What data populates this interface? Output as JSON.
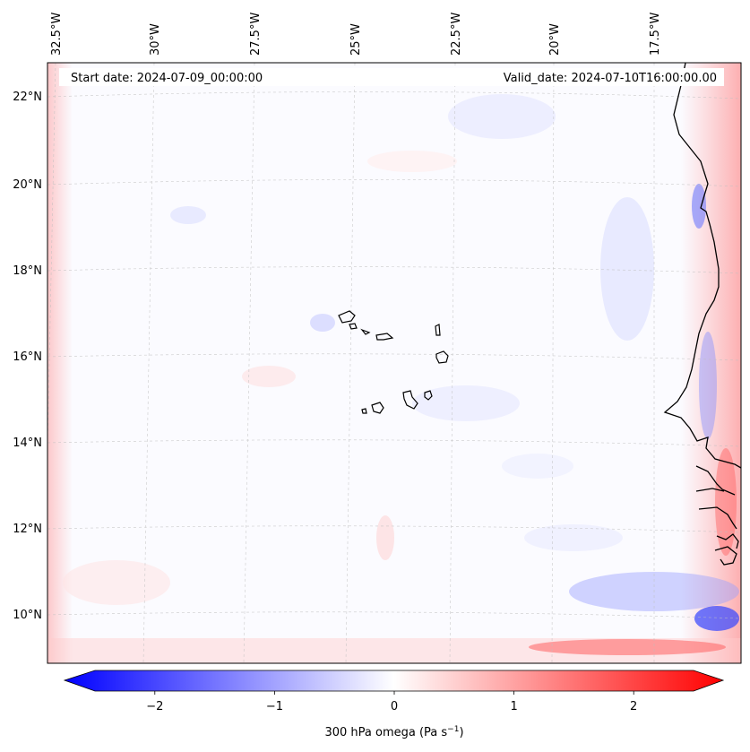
{
  "header": {
    "start_date": "Start date: 2024-07-09_00:00:00",
    "valid_date": "Valid_date: 2024-07-10T16:00:00.00"
  },
  "map": {
    "region": "Cape Verde / West Africa coast",
    "top_lon_labels": [
      "32.5°W",
      "30°W",
      "27.5°W",
      "25°W",
      "22.5°W",
      "20°W",
      "17.5°W"
    ],
    "left_lat_labels": [
      "22°N",
      "20°N",
      "18°N",
      "16°N",
      "14°N",
      "12°N",
      "10°N"
    ]
  },
  "colorbar": {
    "label": "300 hPa omega (Pa s",
    "label_exponent": "−1",
    "label_close": ")",
    "ticks": [
      "−2",
      "−1",
      "0",
      "1",
      "2"
    ],
    "tick_values": [
      -2,
      -1,
      0,
      1,
      2
    ],
    "min": -2.5,
    "max": 2.5,
    "colors": {
      "low": "#0000ff",
      "mid": "#ffffff",
      "high": "#ff0000"
    }
  }
}
